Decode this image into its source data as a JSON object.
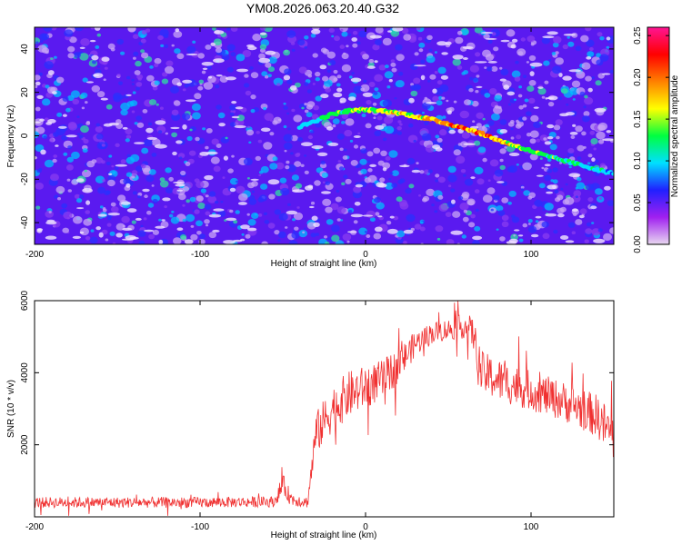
{
  "title": "YM08.2026.063.20.40.G32",
  "chart_data": [
    {
      "type": "heatmap",
      "name": "spectrogram",
      "xlabel": "Height of straight line (km)",
      "ylabel": "Frequency (Hz)",
      "xlim": [
        -200,
        150
      ],
      "ylim": [
        -50,
        50
      ],
      "xticks": [
        -200,
        -100,
        0,
        100
      ],
      "yticks": [
        -40,
        -20,
        0,
        20,
        40
      ],
      "colorbar": {
        "label": "Normalized spectral amplitude",
        "range": [
          0.0,
          0.26
        ],
        "ticks": [
          0.0,
          0.05,
          0.1,
          0.15,
          0.2,
          0.25
        ],
        "tick_labels": [
          "0.00",
          "0.05",
          "0.10",
          "0.15",
          "0.20",
          "0.25"
        ],
        "colors": [
          "#e8d8f0",
          "#a020f0",
          "#2020ff",
          "#00e0ff",
          "#00ff40",
          "#ffff00",
          "#ff8000",
          "#ff0000",
          "#ff1493"
        ]
      },
      "background_color": "#5a1af0",
      "signal_ridge": {
        "x": [
          -40,
          -30,
          -20,
          -10,
          0,
          10,
          20,
          30,
          40,
          50,
          60,
          70,
          80,
          90,
          100,
          110,
          120,
          130,
          140,
          150
        ],
        "frequency": [
          4,
          7,
          10,
          11.5,
          12,
          11.5,
          10.5,
          9,
          7.5,
          5.5,
          3.5,
          1,
          -2,
          -4.5,
          -7,
          -9.5,
          -11.5,
          -13.5,
          -15.5,
          -17.5
        ],
        "amplitude": [
          0.1,
          0.12,
          0.14,
          0.15,
          0.16,
          0.16,
          0.17,
          0.18,
          0.2,
          0.22,
          0.22,
          0.21,
          0.2,
          0.17,
          0.15,
          0.14,
          0.13,
          0.12,
          0.11,
          0.1
        ]
      }
    },
    {
      "type": "line",
      "name": "snr",
      "xlabel": "Height of straight line (km)",
      "ylabel": "SNR (10 * v/v)",
      "xlim": [
        -200,
        150
      ],
      "ylim": [
        0,
        6000
      ],
      "xticks": [
        -200,
        -100,
        0,
        100
      ],
      "yticks": [
        2000,
        4000,
        6000
      ],
      "color": "#f03030",
      "envelope": {
        "x": [
          -200,
          -100,
          -55,
          -50,
          -45,
          -35,
          -30,
          -20,
          -10,
          0,
          10,
          20,
          30,
          40,
          50,
          60,
          65,
          70,
          80,
          100,
          120,
          140,
          150
        ],
        "mean": [
          400,
          400,
          420,
          900,
          500,
          400,
          2300,
          3000,
          3400,
          3600,
          3800,
          4200,
          4800,
          5100,
          5200,
          5300,
          5100,
          4000,
          3800,
          3500,
          3200,
          2800,
          2200
        ],
        "spread": [
          300,
          300,
          300,
          600,
          400,
          300,
          1200,
          1300,
          1300,
          1200,
          1100,
          1000,
          700,
          600,
          600,
          700,
          900,
          1200,
          1200,
          1100,
          1100,
          1200,
          1400
        ]
      }
    }
  ]
}
